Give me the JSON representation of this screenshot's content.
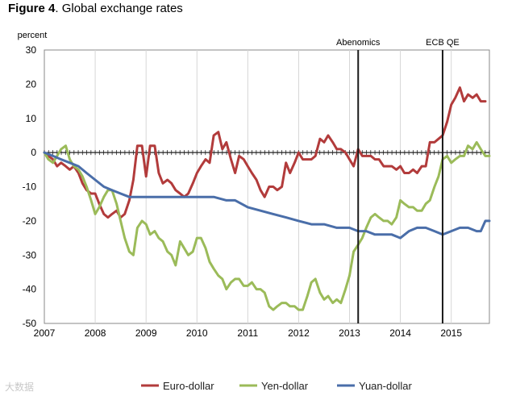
{
  "figure": {
    "label": "Figure 4",
    "caption": ". Global exchange rates"
  },
  "watermark": "大数据",
  "chart_data": {
    "type": "line",
    "title": "Figure 4. Global exchange rates",
    "ylabel": "percent",
    "xlabel": "",
    "ylim": [
      -50,
      30
    ],
    "yticks": [
      30,
      20,
      10,
      0,
      -10,
      -20,
      -30,
      -40,
      -50
    ],
    "xlim": [
      2007,
      2015.75
    ],
    "xticks": [
      2007,
      2008,
      2009,
      2010,
      2011,
      2012,
      2013,
      2014,
      2015
    ],
    "grid": "vertical",
    "legend": "bottom",
    "annotations": [
      {
        "label": "Abenomics",
        "x": 2013.17
      },
      {
        "label": "ECB QE",
        "x": 2014.83
      }
    ],
    "series": [
      {
        "name": "Euro-dollar",
        "color": "#b23b3b",
        "x": [
          2007.0,
          2007.08,
          2007.17,
          2007.25,
          2007.33,
          2007.42,
          2007.5,
          2007.58,
          2007.67,
          2007.75,
          2007.83,
          2007.92,
          2008.0,
          2008.08,
          2008.17,
          2008.25,
          2008.33,
          2008.42,
          2008.5,
          2008.58,
          2008.67,
          2008.75,
          2008.83,
          2008.92,
          2009.0,
          2009.08,
          2009.17,
          2009.25,
          2009.33,
          2009.42,
          2009.5,
          2009.58,
          2009.67,
          2009.75,
          2009.83,
          2009.92,
          2010.0,
          2010.08,
          2010.17,
          2010.25,
          2010.33,
          2010.42,
          2010.5,
          2010.58,
          2010.67,
          2010.75,
          2010.83,
          2010.92,
          2011.0,
          2011.08,
          2011.17,
          2011.25,
          2011.33,
          2011.42,
          2011.5,
          2011.58,
          2011.67,
          2011.75,
          2011.83,
          2011.92,
          2012.0,
          2012.08,
          2012.17,
          2012.25,
          2012.33,
          2012.42,
          2012.5,
          2012.58,
          2012.67,
          2012.75,
          2012.83,
          2012.92,
          2013.0,
          2013.08,
          2013.17,
          2013.25,
          2013.33,
          2013.42,
          2013.5,
          2013.58,
          2013.67,
          2013.75,
          2013.83,
          2013.92,
          2014.0,
          2014.08,
          2014.17,
          2014.25,
          2014.33,
          2014.42,
          2014.5,
          2014.58,
          2014.67,
          2014.75,
          2014.83,
          2014.92,
          2015.0,
          2015.08,
          2015.17,
          2015.25,
          2015.33,
          2015.42,
          2015.5,
          2015.58,
          2015.67
        ],
        "y": [
          0,
          -1,
          -2,
          -4,
          -3,
          -4,
          -5,
          -4,
          -6,
          -9,
          -11,
          -12,
          -12,
          -15,
          -18,
          -19,
          -18,
          -17,
          -19,
          -18,
          -14,
          -8,
          2,
          2,
          -7,
          2,
          2,
          -6,
          -9,
          -8,
          -9,
          -11,
          -12,
          -13,
          -12,
          -9,
          -6,
          -4,
          -2,
          -3,
          5,
          6,
          1,
          3,
          -2,
          -6,
          -1,
          -2,
          -4,
          -6,
          -8,
          -11,
          -13,
          -10,
          -10,
          -11,
          -10,
          -3,
          -6,
          -3,
          0,
          -2,
          -2,
          -2,
          -1,
          4,
          3,
          5,
          3,
          1,
          1,
          0,
          -2,
          -4,
          1,
          -1,
          -1,
          -1,
          -2,
          -2,
          -4,
          -4,
          -4,
          -5,
          -4,
          -6,
          -6,
          -5,
          -6,
          -4,
          -4,
          3,
          3,
          4,
          5,
          9,
          14,
          16,
          19,
          15,
          17,
          16,
          17,
          15,
          15
        ]
      },
      {
        "name": "Yen-dollar",
        "color": "#9bbb59",
        "x": [
          2007.0,
          2007.08,
          2007.17,
          2007.25,
          2007.33,
          2007.42,
          2007.5,
          2007.58,
          2007.67,
          2007.75,
          2007.83,
          2007.92,
          2008.0,
          2008.08,
          2008.17,
          2008.25,
          2008.33,
          2008.42,
          2008.5,
          2008.58,
          2008.67,
          2008.75,
          2008.83,
          2008.92,
          2009.0,
          2009.08,
          2009.17,
          2009.25,
          2009.33,
          2009.42,
          2009.5,
          2009.58,
          2009.67,
          2009.75,
          2009.83,
          2009.92,
          2010.0,
          2010.08,
          2010.17,
          2010.25,
          2010.33,
          2010.42,
          2010.5,
          2010.58,
          2010.67,
          2010.75,
          2010.83,
          2010.92,
          2011.0,
          2011.08,
          2011.17,
          2011.25,
          2011.33,
          2011.42,
          2011.5,
          2011.58,
          2011.67,
          2011.75,
          2011.83,
          2011.92,
          2012.0,
          2012.08,
          2012.17,
          2012.25,
          2012.33,
          2012.42,
          2012.5,
          2012.58,
          2012.67,
          2012.75,
          2012.83,
          2012.92,
          2013.0,
          2013.08,
          2013.17,
          2013.25,
          2013.33,
          2013.42,
          2013.5,
          2013.58,
          2013.67,
          2013.75,
          2013.83,
          2013.92,
          2014.0,
          2014.08,
          2014.17,
          2014.25,
          2014.33,
          2014.42,
          2014.5,
          2014.58,
          2014.67,
          2014.75,
          2014.83,
          2014.92,
          2015.0,
          2015.08,
          2015.17,
          2015.25,
          2015.33,
          2015.42,
          2015.5,
          2015.58,
          2015.67,
          2015.75
        ],
        "y": [
          0,
          -2,
          -3,
          -1,
          1,
          2,
          -2,
          -4,
          -5,
          -7,
          -10,
          -14,
          -18,
          -16,
          -13,
          -11,
          -11,
          -15,
          -20,
          -25,
          -29,
          -30,
          -22,
          -20,
          -21,
          -24,
          -23,
          -25,
          -26,
          -29,
          -30,
          -33,
          -26,
          -28,
          -30,
          -29,
          -25,
          -25,
          -28,
          -32,
          -34,
          -36,
          -37,
          -40,
          -38,
          -37,
          -37,
          -39,
          -39,
          -38,
          -40,
          -40,
          -41,
          -45,
          -46,
          -45,
          -44,
          -44,
          -45,
          -45,
          -46,
          -46,
          -42,
          -38,
          -37,
          -41,
          -43,
          -42,
          -44,
          -43,
          -44,
          -40,
          -36,
          -29,
          -27,
          -25,
          -22,
          -19,
          -18,
          -19,
          -20,
          -20,
          -21,
          -19,
          -14,
          -15,
          -16,
          -16,
          -17,
          -17,
          -15,
          -14,
          -10,
          -7,
          -2,
          -1,
          -3,
          -2,
          -1,
          -1,
          2,
          1,
          3,
          1,
          -1,
          -1
        ]
      },
      {
        "name": "Yuan-dollar",
        "color": "#4a6ea9",
        "x": [
          2007.0,
          2007.17,
          2007.33,
          2007.5,
          2007.67,
          2007.83,
          2008.0,
          2008.17,
          2008.33,
          2008.5,
          2008.67,
          2008.83,
          2009.0,
          2009.33,
          2009.67,
          2010.0,
          2010.33,
          2010.58,
          2010.75,
          2011.0,
          2011.25,
          2011.5,
          2011.75,
          2012.0,
          2012.25,
          2012.5,
          2012.75,
          2013.0,
          2013.17,
          2013.33,
          2013.5,
          2013.67,
          2013.83,
          2014.0,
          2014.17,
          2014.33,
          2014.5,
          2014.67,
          2014.83,
          2015.0,
          2015.17,
          2015.33,
          2015.5,
          2015.58,
          2015.67,
          2015.75
        ],
        "y": [
          0,
          -1,
          -2,
          -3,
          -4,
          -6,
          -8,
          -10,
          -11,
          -12,
          -13,
          -13,
          -13,
          -13,
          -13,
          -13,
          -13,
          -14,
          -14,
          -16,
          -17,
          -18,
          -19,
          -20,
          -21,
          -21,
          -22,
          -22,
          -23,
          -23,
          -24,
          -24,
          -24,
          -25,
          -23,
          -22,
          -22,
          -23,
          -24,
          -23,
          -22,
          -22,
          -23,
          -23,
          -20,
          -20
        ]
      }
    ]
  }
}
